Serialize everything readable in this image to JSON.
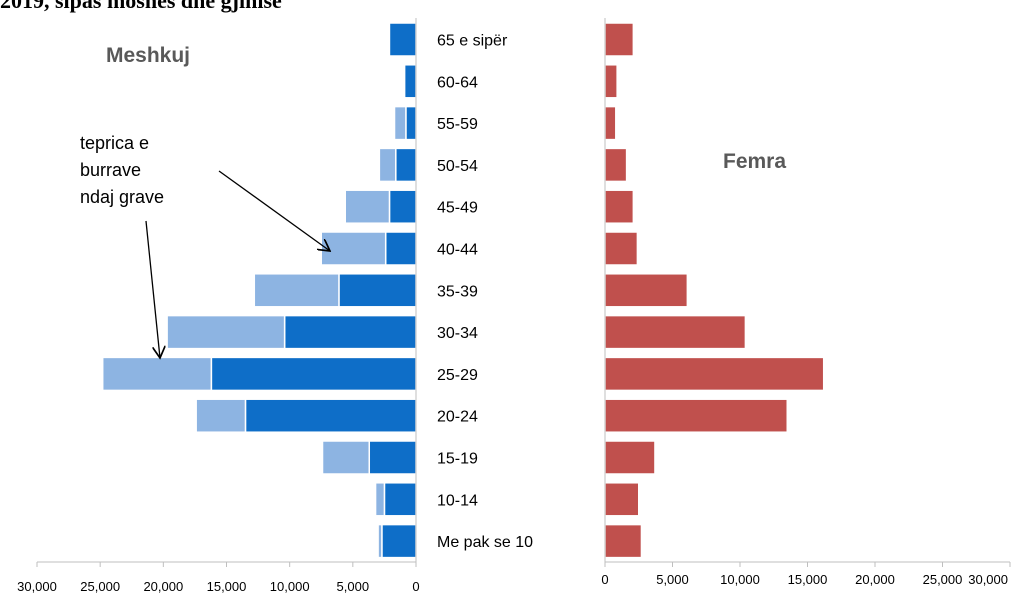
{
  "title_fragment": "2019, sipas moshës dhe gjinisë",
  "chart_data": [
    {
      "type": "bar",
      "orientation": "horizontal",
      "stacked": true,
      "title": "Meshkuj",
      "categories": [
        "Me pak se 10",
        "10-14",
        "15-19",
        "20-24",
        "25-29",
        "30-34",
        "35-39",
        "40-44",
        "45-49",
        "50-54",
        "55-59",
        "60-64",
        "65 e sipër"
      ],
      "series": [
        {
          "name": "",
          "color": "#0E6EC8",
          "values": [
            2700,
            2500,
            3700,
            13500,
            16200,
            10400,
            6100,
            2400,
            2100,
            1600,
            800,
            900,
            2100
          ]
        },
        {
          "name": "",
          "color": "#8DB4E2",
          "values": [
            300,
            700,
            3700,
            3900,
            8600,
            9300,
            6700,
            5100,
            3500,
            1300,
            900,
            0,
            0
          ]
        }
      ],
      "xlim": [
        0,
        30000
      ],
      "x_reversed": true,
      "xticks": [
        "30,000",
        "25,000",
        "20,000",
        "15,000",
        "10,000",
        "5,000",
        "0"
      ],
      "annotation": [
        "teprica e",
        "burrave",
        "ndaj grave"
      ]
    },
    {
      "type": "bar",
      "orientation": "horizontal",
      "title": "Femra",
      "categories": [
        "Me pak se 10",
        "10-14",
        "15-19",
        "20-24",
        "25-29",
        "30-34",
        "35-39",
        "40-44",
        "45-49",
        "50-54",
        "55-59",
        "60-64",
        "65 e sipër"
      ],
      "series": [
        {
          "name": "",
          "color": "#C0504D",
          "values": [
            2700,
            2500,
            3700,
            13500,
            16200,
            10400,
            6100,
            2400,
            2100,
            1600,
            800,
            900,
            2100
          ]
        }
      ],
      "xlim": [
        0,
        30000
      ],
      "xticks": [
        "0",
        "5,000",
        "10,000",
        "15,000",
        "20,000",
        "25,000",
        "30,000"
      ]
    }
  ]
}
